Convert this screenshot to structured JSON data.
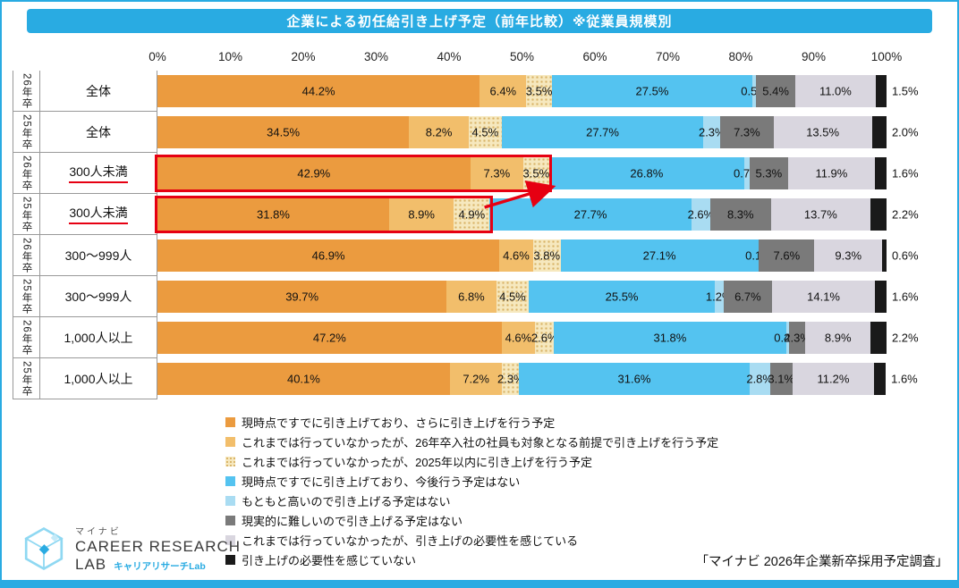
{
  "title": "企業による初任給引き上げ予定（前年比較）※従業員規模別",
  "source": "「マイナビ 2026年企業新卒採用予定調査」",
  "logo": {
    "brand_small": "マイナビ",
    "brand_line1": "CAREER RESEARCH",
    "brand_line2": "LAB",
    "brand_sub": "キャリアリサーチLab"
  },
  "colors": {
    "accent_blue": "#29ABE2",
    "highlight_red": "#E60012"
  },
  "chart_data": {
    "type": "bar",
    "orientation": "horizontal-stacked",
    "xlim": [
      0,
      100
    ],
    "x_axis_position": "top",
    "legend_position": "bottom-left",
    "x_ticks": [
      "0%",
      "10%",
      "20%",
      "30%",
      "40%",
      "50%",
      "60%",
      "70%",
      "80%",
      "90%",
      "100%"
    ],
    "series": [
      {
        "name": "現時点ですでに引き上げており、さらに引き上げを行う予定",
        "color": "#EB9B3F"
      },
      {
        "name": "これまでは行っていなかったが、26年卒入社の社員も対象となる前提で引き上げを行う予定",
        "color": "#F2BE6B"
      },
      {
        "name": "これまでは行っていなかったが、2025年以内に引き上げを行う予定",
        "color": "#F6E8BE",
        "pattern": "dots"
      },
      {
        "name": "現時点ですでに引き上げており、今後行う予定はない",
        "color": "#54C3F0"
      },
      {
        "name": "もともと高いので引き上げる予定はない",
        "color": "#A9DCF2"
      },
      {
        "name": "現実的に難しいので引き上げる予定はない",
        "color": "#7A7A7A"
      },
      {
        "name": "これまでは行っていなかったが、引き上げの必要性を感じている",
        "color": "#D9D6DF"
      },
      {
        "name": "引き上げの必要性を感じていない",
        "color": "#1A1A1A"
      }
    ],
    "rows": [
      {
        "year": "26年卒",
        "group": "全体",
        "values": [
          44.2,
          6.4,
          3.5,
          27.5,
          0.5,
          5.4,
          11.0,
          1.5
        ],
        "highlighted": false,
        "underline": false
      },
      {
        "year": "25年卒",
        "group": "全体",
        "values": [
          34.5,
          8.2,
          4.5,
          27.7,
          2.3,
          7.3,
          13.5,
          2.0
        ],
        "highlighted": false,
        "underline": false
      },
      {
        "year": "26年卒",
        "group": "300人未満",
        "values": [
          42.9,
          7.3,
          3.5,
          26.8,
          0.7,
          5.3,
          11.9,
          1.6
        ],
        "highlighted": true,
        "underline": true
      },
      {
        "year": "25年卒",
        "group": "300人未満",
        "values": [
          31.8,
          8.9,
          4.9,
          27.7,
          2.6,
          8.3,
          13.7,
          2.2
        ],
        "highlighted": true,
        "underline": true
      },
      {
        "year": "26年卒",
        "group": "300〜999人",
        "values": [
          46.9,
          4.6,
          3.8,
          27.1,
          0.1,
          7.6,
          9.3,
          0.6
        ],
        "highlighted": false,
        "underline": false
      },
      {
        "year": "25年卒",
        "group": "300〜999人",
        "values": [
          39.7,
          6.8,
          4.5,
          25.5,
          1.2,
          6.7,
          14.1,
          1.6
        ],
        "highlighted": false,
        "underline": false
      },
      {
        "year": "26年卒",
        "group": "1,000人以上",
        "values": [
          47.2,
          4.6,
          2.6,
          31.8,
          0.4,
          2.3,
          8.9,
          2.2
        ],
        "highlighted": false,
        "underline": false
      },
      {
        "year": "25年卒",
        "group": "1,000人以上",
        "values": [
          40.1,
          7.2,
          2.3,
          31.6,
          2.8,
          3.1,
          11.2,
          1.6
        ],
        "highlighted": false,
        "underline": false
      }
    ]
  }
}
